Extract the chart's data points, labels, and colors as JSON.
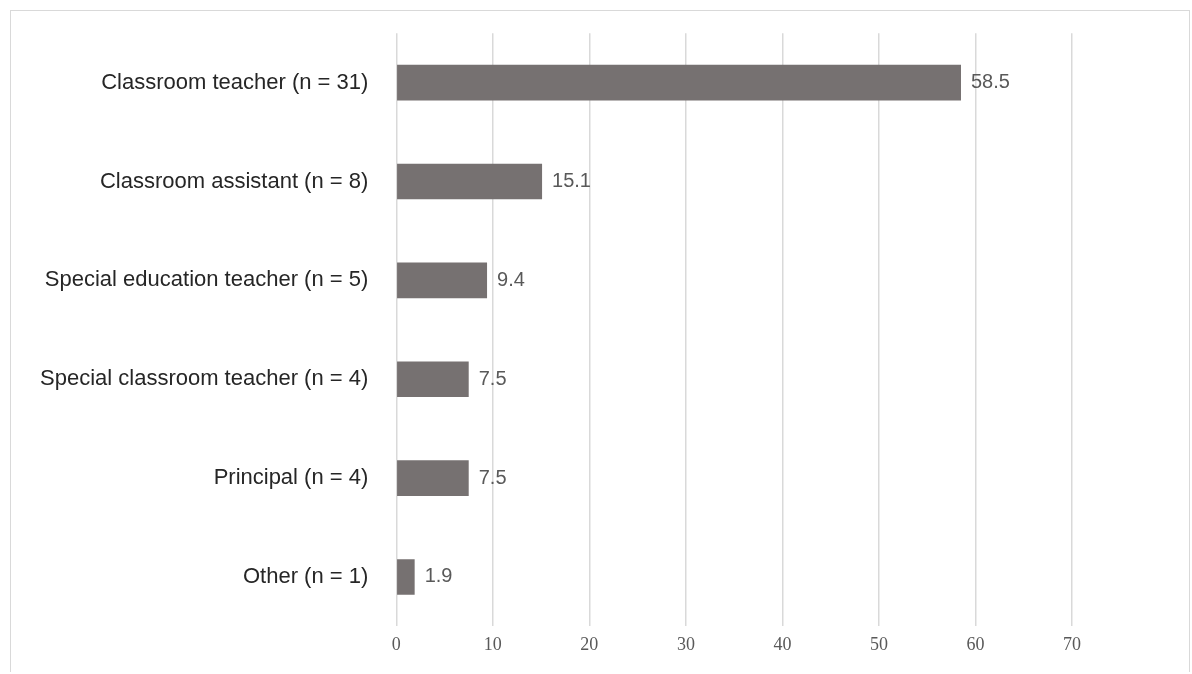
{
  "chart_data": {
    "type": "bar",
    "orientation": "horizontal",
    "categories": [
      "Classroom teacher (n = 31)",
      "Classroom assistant (n = 8)",
      "Special education teacher (n = 5)",
      "Special classroom teacher (n = 4)",
      "Principal (n = 4)",
      "Other (n = 1)"
    ],
    "values": [
      58.5,
      15.1,
      9.4,
      7.5,
      7.5,
      1.9
    ],
    "color": "#767171",
    "xlim": [
      0,
      70
    ],
    "xticks": [
      0,
      10,
      20,
      30,
      40,
      50,
      60,
      70
    ],
    "grid": "x",
    "data_labels": true,
    "legend": false
  }
}
